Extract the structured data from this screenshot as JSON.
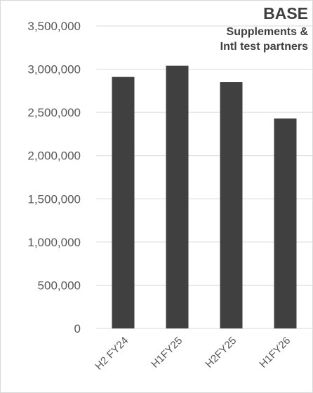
{
  "chart_data": {
    "type": "bar",
    "title": "BASE",
    "subtitle": "Supplements &\nIntl test partners",
    "categories": [
      "H2 FY24",
      "H1FY25",
      "H2FY25",
      "H1FY26"
    ],
    "series": [
      {
        "values": [
          2910000,
          3040000,
          2850000,
          2430000
        ]
      }
    ],
    "y_ticks": [
      "0",
      "500,000",
      "1,000,000",
      "1,500,000",
      "2,000,000",
      "2,500,000",
      "3,000,000",
      "3,500,000"
    ],
    "ylim": [
      0,
      3500000
    ],
    "grid": true,
    "legend": "none",
    "colors": {
      "bar": "#404040",
      "grid": "#d9d9d9",
      "text": "#595959",
      "title": "#404040"
    }
  }
}
